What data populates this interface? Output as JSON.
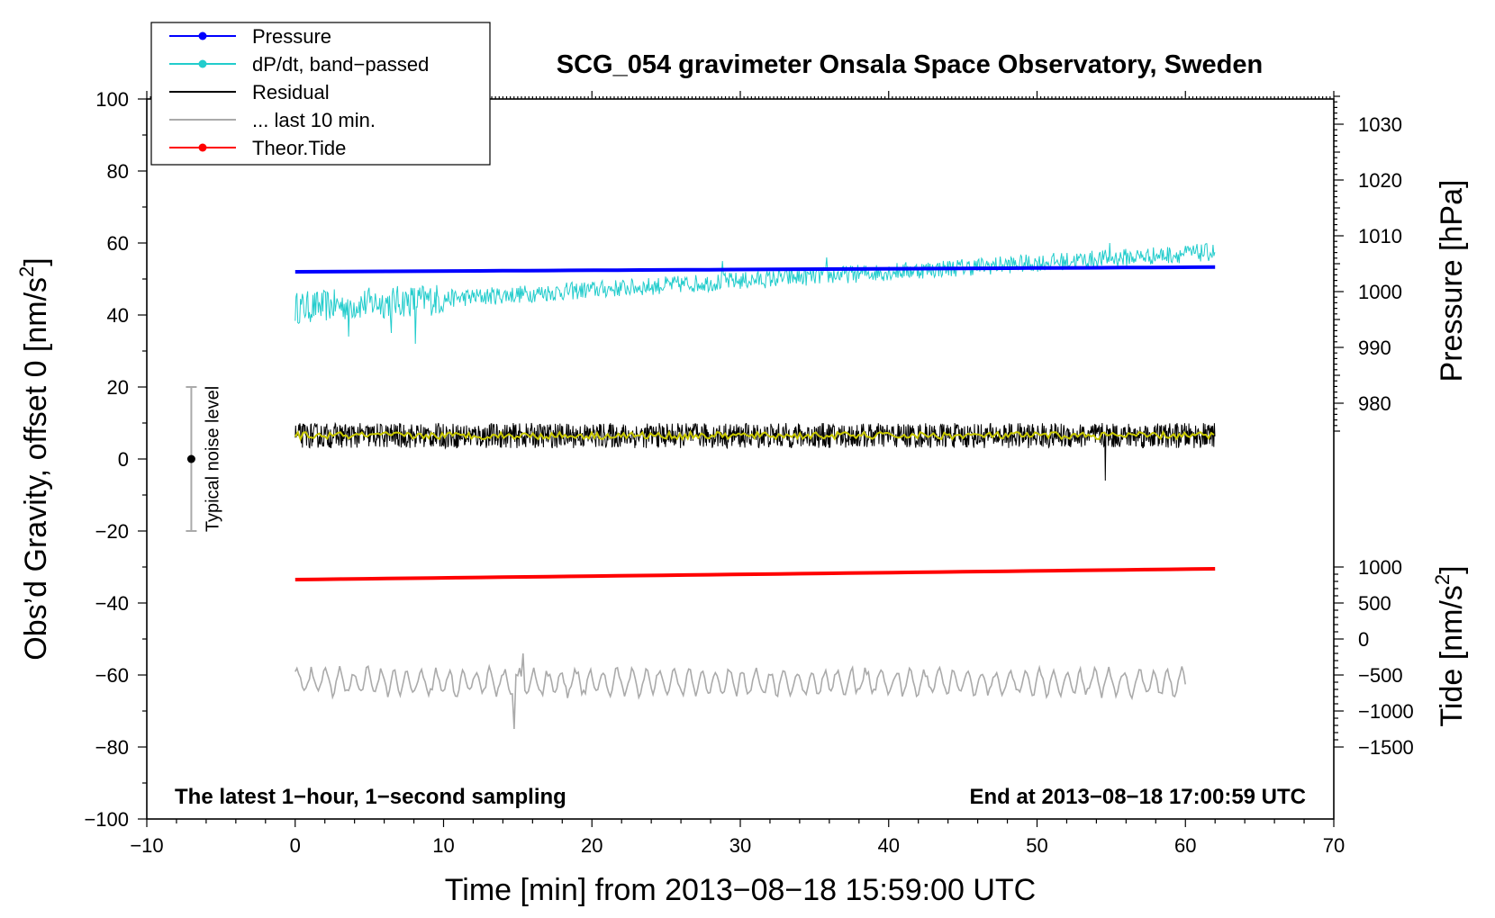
{
  "chart_data": {
    "type": "line",
    "title": "SCG_054 gravimeter Onsala Space Observatory, Sweden",
    "xlabel": "Time [min] from 2013−08−18 15:59:00 UTC",
    "ylabel_left": "Obs’d Gravity, offset 0 [nm/s²]",
    "ylabel_right_top": "Pressure [hPa]",
    "ylabel_right_bottom": "Tide [nm/s²]",
    "xlim": [
      -10,
      70
    ],
    "ylim": [
      -100,
      100
    ],
    "x_ticks": [
      -10,
      0,
      10,
      20,
      30,
      40,
      50,
      60,
      70
    ],
    "x_tick_labels": [
      "−10",
      "0",
      "10",
      "20",
      "30",
      "40",
      "50",
      "60",
      "70"
    ],
    "y_ticks": [
      -100,
      -80,
      -60,
      -40,
      -20,
      0,
      20,
      40,
      60,
      80,
      100
    ],
    "y_tick_labels": [
      "−100",
      "−80",
      "−60",
      "−40",
      "−20",
      "0",
      "20",
      "40",
      "60",
      "80",
      "100"
    ],
    "pressure_axis": {
      "ticks": [
        980,
        990,
        1000,
        1010,
        1020,
        1030
      ],
      "tick_labels": [
        "980",
        "990",
        "1000",
        "1010",
        "1020",
        "1030"
      ],
      "gravity_at_1000": 46.5,
      "gravity_per_hpa": 1.55
    },
    "tide_axis": {
      "ticks": [
        -1500,
        -1000,
        -500,
        0,
        500,
        1000
      ],
      "tick_labels": [
        "−1500",
        "−1000",
        "−500",
        "0",
        "500",
        "1000"
      ],
      "gravity_at_0": -50,
      "gravity_per_unit": 0.02
    },
    "legend": {
      "position": "top-left",
      "entries": [
        {
          "label": "Pressure",
          "color": "#0000ff",
          "marker": true
        },
        {
          "label": "dP/dt, band−passed",
          "color": "#22cccc",
          "marker": true
        },
        {
          "label": "Residual",
          "color": "#000000",
          "marker": false
        },
        {
          "label": "... last 10 min.",
          "color": "#aaaaaa",
          "marker": false
        },
        {
          "label": "Theor.Tide",
          "color": "#ff0000",
          "marker": true
        }
      ]
    },
    "series": [
      {
        "name": "Pressure",
        "color": "#0000ff",
        "x_range": [
          0,
          62
        ],
        "y_start": 52,
        "y_end": 53.3,
        "style": "thick"
      },
      {
        "name": "dP/dt, band−passed",
        "color": "#22cccc",
        "x_range": [
          0,
          62
        ],
        "y_trend_start": 42,
        "y_trend_end": 57.5,
        "noise_amplitude": 2.5,
        "spikes": [
          {
            "x": 3.6,
            "y": 34
          },
          {
            "x": 6.5,
            "y": 35
          },
          {
            "x": 8.1,
            "y": 32
          },
          {
            "x": 28.8,
            "y": 55
          },
          {
            "x": 35.8,
            "y": 56
          },
          {
            "x": 54.9,
            "y": 60
          }
        ]
      },
      {
        "name": "Residual",
        "color": "#000000",
        "x_range": [
          0,
          62
        ],
        "y_mean": 6.5,
        "noise_amplitude": 3.5,
        "spikes": [
          {
            "x": 54.6,
            "y": -6
          }
        ]
      },
      {
        "name": "Residual (smoothed)",
        "color": "#c8c800",
        "x_range": [
          0,
          62
        ],
        "y_mean": 6.5,
        "noise_amplitude": 1.0
      },
      {
        "name": "... last 10 min.",
        "color": "#aaaaaa",
        "x_range": [
          0,
          60
        ],
        "y_mean": -62,
        "noise_amplitude": 3.5,
        "spikes": [
          {
            "x": 14.7,
            "y": -75
          },
          {
            "x": 15.3,
            "y": -54
          }
        ]
      },
      {
        "name": "Theor.Tide",
        "color": "#ff0000",
        "x_range": [
          0,
          62
        ],
        "y_start": -33.5,
        "y_end": -30.5,
        "style": "thick"
      }
    ],
    "noise_bar": {
      "label": "Typical noise level",
      "x": -7,
      "y_center": 0,
      "y_low": -20,
      "y_high": 20
    },
    "annotations": {
      "bottom_left": "The latest 1−hour, 1−second sampling",
      "bottom_right": "End at 2013−08−18 17:00:59 UTC"
    }
  }
}
